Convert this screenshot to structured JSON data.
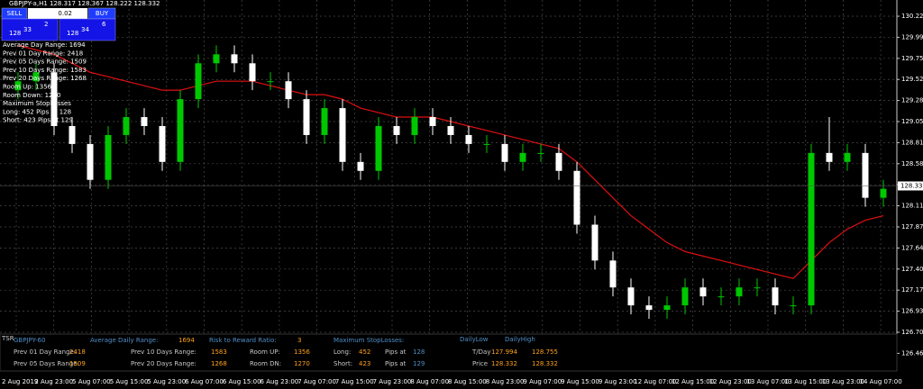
{
  "window": {
    "title": "GBPJPY-a,H1  128.317 128.367 128.222 128.332"
  },
  "trade_panel": {
    "sell": "SELL",
    "lot": "0.02",
    "buy": "BUY",
    "bid": {
      "big": "128",
      "pips": "33",
      "frac": "2"
    },
    "ask": {
      "big": "128",
      "pips": "34",
      "frac": "6"
    }
  },
  "overlay": [
    "Average Day  Range: 1694",
    "Prev 01  Day  Range: 2418",
    "Prev 05  Days Range: 1509",
    "Prev 10  Days Range: 1583",
    "Prev 20  Days Range: 1268",
    "Room Up:   1356",
    "Room Down: 1270",
    "Maximum StopLosses",
    "Long:  452 Pips at 128",
    "Short: 423 Pips at 129"
  ],
  "chart_data": {
    "type": "candlestick",
    "up_color": "#00c800",
    "down_color": "#ffffff",
    "ma_color": "#e01010",
    "grid": true,
    "open": [
      129.4,
      129.5,
      129.6,
      129.0,
      128.8,
      128.4,
      128.9,
      129.1,
      129.0,
      128.6,
      129.3,
      129.7,
      129.8,
      129.7,
      129.5,
      129.5,
      129.3,
      128.9,
      129.2,
      128.6,
      128.5,
      129.0,
      128.9,
      129.1,
      129.0,
      128.9,
      128.8,
      128.8,
      128.6,
      128.7,
      128.7,
      128.5,
      127.9,
      127.5,
      127.2,
      127.0,
      126.95,
      127.0,
      127.2,
      127.1,
      127.1,
      127.2,
      127.2,
      127.0,
      127.0,
      128.7,
      128.6,
      128.7,
      128.2
    ],
    "high": [
      129.6,
      129.7,
      129.7,
      129.1,
      128.9,
      129.0,
      129.2,
      129.2,
      129.1,
      129.4,
      129.8,
      129.9,
      129.9,
      129.8,
      129.6,
      129.6,
      129.4,
      129.3,
      129.3,
      128.7,
      129.1,
      129.1,
      129.2,
      129.2,
      129.1,
      129.0,
      128.9,
      128.9,
      128.8,
      128.8,
      128.8,
      128.6,
      128.0,
      127.6,
      127.3,
      127.1,
      127.1,
      127.3,
      127.3,
      127.2,
      127.3,
      127.3,
      127.3,
      127.1,
      128.8,
      129.1,
      128.8,
      128.8,
      128.4
    ],
    "low": [
      129.3,
      129.4,
      128.9,
      128.7,
      128.3,
      128.3,
      128.8,
      128.9,
      128.5,
      128.5,
      129.2,
      129.6,
      129.6,
      129.4,
      129.4,
      129.2,
      128.8,
      128.8,
      128.5,
      128.4,
      128.4,
      128.8,
      128.8,
      128.9,
      128.8,
      128.7,
      128.7,
      128.5,
      128.5,
      128.6,
      128.4,
      127.8,
      127.4,
      127.1,
      126.9,
      126.85,
      126.85,
      126.9,
      127.0,
      127.0,
      127.0,
      127.1,
      126.9,
      126.9,
      126.9,
      128.5,
      128.5,
      128.1,
      128.1
    ],
    "close": [
      129.5,
      129.6,
      129.0,
      128.8,
      128.4,
      128.9,
      129.1,
      129.0,
      128.6,
      129.3,
      129.7,
      129.8,
      129.7,
      129.5,
      129.5,
      129.3,
      128.9,
      129.2,
      128.6,
      128.5,
      129.0,
      128.9,
      129.1,
      129.0,
      128.9,
      128.8,
      128.8,
      128.6,
      128.7,
      128.7,
      128.5,
      127.9,
      127.5,
      127.2,
      127.0,
      126.95,
      127.0,
      127.2,
      127.1,
      127.1,
      127.2,
      127.2,
      127.0,
      127.0,
      128.7,
      128.6,
      128.7,
      128.2,
      128.3
    ],
    "ma": [
      129.9,
      129.85,
      129.8,
      129.7,
      129.6,
      129.55,
      129.5,
      129.45,
      129.4,
      129.4,
      129.45,
      129.5,
      129.5,
      129.5,
      129.45,
      129.4,
      129.35,
      129.35,
      129.3,
      129.2,
      129.15,
      129.1,
      129.1,
      129.1,
      129.05,
      129.0,
      128.95,
      128.9,
      128.85,
      128.8,
      128.75,
      128.6,
      128.4,
      128.2,
      128.0,
      127.85,
      127.7,
      127.6,
      127.55,
      127.5,
      127.45,
      127.4,
      127.35,
      127.3,
      127.5,
      127.7,
      127.85,
      127.95,
      128.0
    ],
    "current_price": 128.332,
    "ylim": [
      126.268,
      130.406
    ],
    "yticks": [
      {
        "value": 130.225,
        "label": "130.225"
      },
      {
        "value": 129.99,
        "label": "129.990"
      },
      129.755,
      {
        "value": 129.52,
        "label": "129.520"
      },
      129.285,
      {
        "value": 129.05,
        "label": "129.050"
      },
      128.815,
      {
        "value": 128.58,
        "label": "128.580"
      },
      128.345,
      {
        "value": 128.11,
        "label": "128.110"
      },
      127.875,
      {
        "value": 127.64,
        "label": "127.640"
      },
      127.405,
      {
        "value": 127.17,
        "label": "127.170"
      },
      126.935,
      {
        "value": 126.7,
        "label": "126.700"
      },
      126.465
    ],
    "time_labels": [
      "2 Aug 2019",
      "2 Aug 23:00",
      "5 Aug 07:00",
      "5 Aug 15:00",
      "5 Aug 23:00",
      "6 Aug 07:00",
      "6 Aug 15:00",
      "6 Aug 23:00",
      "7 Aug 07:00",
      "7 Aug 15:00",
      "7 Aug 23:00",
      "8 Aug 07:00",
      "8 Aug 15:00",
      "8 Aug 23:00",
      "9 Aug 07:00",
      "9 Aug 15:00",
      "9 Aug 23:00",
      "12 Aug 07:00",
      "12 Aug 15:00",
      "12 Aug 23:00",
      "13 Aug 07:00",
      "13 Aug 15:00",
      "13 Aug 23:00",
      "14 Aug 07:00"
    ]
  },
  "info_panel": {
    "tag": "TSR",
    "symbol": "GBPJPY-60",
    "adr_label": "Average Daily Range:",
    "adr": "1694",
    "rr_label": "Risk to Reward Ratio:",
    "rr": "3",
    "sl_label": "Maximum StopLosses:",
    "daily_low": "DailyLow",
    "daily_high": "DailyHigh",
    "row1": [
      "Prev 01 Day Range:",
      "2418",
      "Prev 10 Days Range:",
      "1583",
      "Room UP:",
      "1356",
      "Long:",
      "452",
      "Pips at",
      "128",
      "T/Day",
      "127.994",
      "128.755"
    ],
    "row2": [
      "Prev 05 Days Range:",
      "1509",
      "Prev 20 Days Range:",
      "1268",
      "Room DN:",
      "1270",
      "Short:",
      "423",
      "Pips at",
      "129",
      "Price",
      "128.332",
      "128.332"
    ]
  }
}
